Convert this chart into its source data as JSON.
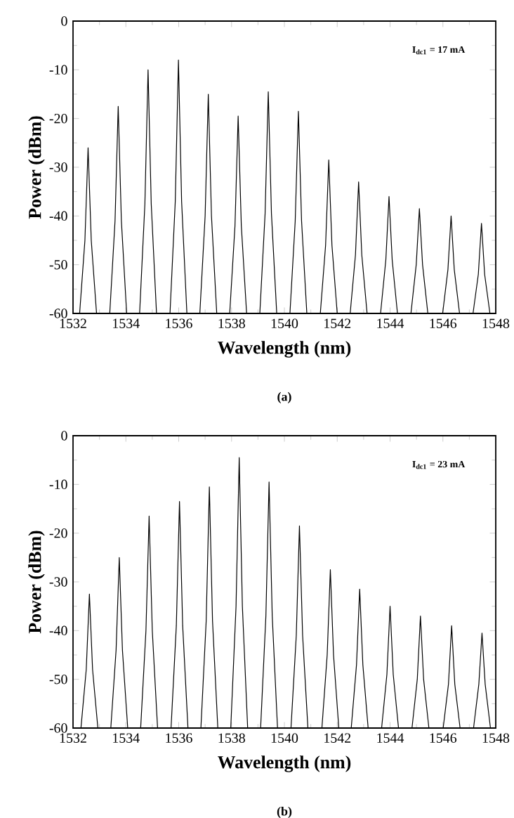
{
  "chart_data": [
    {
      "type": "line",
      "xlabel": "Wavelength (nm)",
      "ylabel": "Power (dBm)",
      "annotations": [
        "I$_{dc1}$ = 17 mA",
        "(a)"
      ],
      "xlim": [
        1532,
        1548
      ],
      "ylim": [
        -60,
        0
      ],
      "xticks": [
        1532,
        1534,
        1536,
        1538,
        1540,
        1542,
        1544,
        1546,
        1548
      ],
      "yticks": [
        -60,
        -50,
        -40,
        -30,
        -20,
        -10,
        0
      ],
      "series": [
        {
          "color": "#000000",
          "x": [
            1532.25,
            1532.45,
            1532.57,
            1532.69,
            1532.89,
            1533.39,
            1533.59,
            1533.71,
            1533.83,
            1534.03,
            1534.52,
            1534.72,
            1534.84,
            1534.96,
            1535.16,
            1535.67,
            1535.87,
            1535.99,
            1536.11,
            1536.31,
            1536.8,
            1537.0,
            1537.12,
            1537.24,
            1537.44,
            1537.93,
            1538.13,
            1538.25,
            1538.37,
            1538.57,
            1539.07,
            1539.27,
            1539.39,
            1539.51,
            1539.71,
            1540.21,
            1540.41,
            1540.53,
            1540.65,
            1540.85,
            1541.36,
            1541.56,
            1541.68,
            1541.8,
            1542.0,
            1542.49,
            1542.69,
            1542.81,
            1542.93,
            1543.13,
            1543.64,
            1543.84,
            1543.96,
            1544.08,
            1544.28,
            1544.79,
            1544.99,
            1545.11,
            1545.23,
            1545.43,
            1545.99,
            1546.19,
            1546.31,
            1546.43,
            1546.63,
            1547.14,
            1547.34,
            1547.46,
            1547.58,
            1547.78
          ],
          "values": [
            -60,
            -45,
            -26,
            -45,
            -60,
            -60,
            -41,
            -17.5,
            -41,
            -60,
            -60,
            -37.5,
            -10,
            -37.5,
            -60,
            -60,
            -37,
            -8,
            -37,
            -60,
            -60,
            -40,
            -15,
            -40,
            -60,
            -60,
            -42,
            -19.5,
            -42,
            -60,
            -60,
            -39.5,
            -14.5,
            -39.5,
            -60,
            -60,
            -41,
            -18.5,
            -41,
            -60,
            -60,
            -46,
            -28.5,
            -46,
            -60,
            -60,
            -48,
            -33,
            -48,
            -60,
            -60,
            -49,
            -36,
            -49,
            -60,
            -60,
            -50,
            -38.5,
            -50,
            -60,
            -60,
            -51,
            -40,
            -51,
            -60,
            -60,
            -52,
            -41.5,
            -52,
            -60
          ]
        }
      ]
    },
    {
      "type": "line",
      "xlabel": "Wavelength (nm)",
      "ylabel": "Power (dBm)",
      "annotations": [
        "I$_{dc1}$ = 23 mA",
        "(b)"
      ],
      "xlim": [
        1532,
        1548
      ],
      "ylim": [
        -60,
        0
      ],
      "xticks": [
        1532,
        1534,
        1536,
        1538,
        1540,
        1542,
        1544,
        1546,
        1548
      ],
      "yticks": [
        -60,
        -50,
        -40,
        -30,
        -20,
        -10,
        0
      ],
      "series": [
        {
          "color": "#000000",
          "x": [
            1532.3,
            1532.5,
            1532.62,
            1532.74,
            1532.94,
            1533.43,
            1533.63,
            1533.75,
            1533.87,
            1534.07,
            1534.56,
            1534.76,
            1534.88,
            1535.0,
            1535.2,
            1535.71,
            1535.91,
            1536.03,
            1536.15,
            1536.35,
            1536.84,
            1537.04,
            1537.16,
            1537.28,
            1537.48,
            1537.97,
            1538.17,
            1538.29,
            1538.41,
            1538.61,
            1539.1,
            1539.3,
            1539.42,
            1539.54,
            1539.74,
            1540.25,
            1540.45,
            1540.57,
            1540.69,
            1540.89,
            1541.42,
            1541.62,
            1541.74,
            1541.86,
            1542.06,
            1542.53,
            1542.73,
            1542.85,
            1542.97,
            1543.17,
            1543.68,
            1543.88,
            1544.0,
            1544.12,
            1544.32,
            1544.83,
            1545.03,
            1545.15,
            1545.27,
            1545.47,
            1546.01,
            1546.21,
            1546.33,
            1546.45,
            1546.65,
            1547.16,
            1547.36,
            1547.48,
            1547.6,
            1547.8
          ],
          "values": [
            -60,
            -48,
            -32.5,
            -48,
            -60,
            -60,
            -44,
            -25,
            -44,
            -60,
            -60,
            -40,
            -16.5,
            -40,
            -60,
            -60,
            -39,
            -13.5,
            -39,
            -60,
            -60,
            -38,
            -10.5,
            -38,
            -60,
            -60,
            -35,
            -4.5,
            -35,
            -60,
            -60,
            -37,
            -9.5,
            -37,
            -60,
            -60,
            -41,
            -18.5,
            -41,
            -60,
            -60,
            -45,
            -27.5,
            -45,
            -60,
            -60,
            -47,
            -31.5,
            -47,
            -60,
            -60,
            -49,
            -35,
            -49,
            -60,
            -60,
            -50,
            -37,
            -50,
            -60,
            -60,
            -51,
            -39,
            -51,
            -60,
            -60,
            -51,
            -40.5,
            -51,
            -60
          ]
        }
      ]
    }
  ]
}
